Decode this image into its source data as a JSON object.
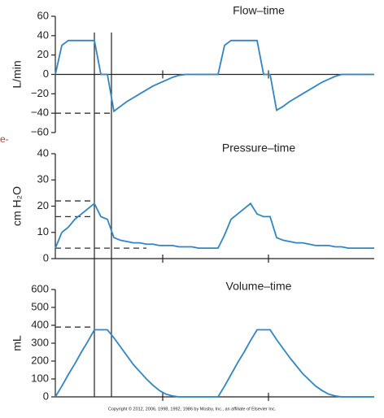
{
  "chart_data": [
    {
      "type": "line",
      "title": "Flow–time",
      "y_label": "L/min",
      "color": "#2f86c6",
      "categories": [
        null,
        null,
        null,
        null,
        null,
        null,
        null,
        null,
        null,
        null,
        null,
        null,
        null,
        null,
        null,
        null,
        null,
        null,
        null,
        null,
        null,
        null,
        null,
        null,
        null,
        null,
        null,
        null,
        null,
        null,
        null,
        null,
        null,
        null,
        null,
        null,
        null,
        null,
        null,
        null,
        null,
        null,
        null,
        null,
        null,
        null,
        null,
        null,
        null,
        null
      ],
      "values": [
        0,
        30,
        35,
        35,
        35,
        35,
        35,
        0,
        0,
        -38,
        -33,
        -28,
        -24,
        -20,
        -16,
        -12,
        -9,
        -6,
        -3,
        -1,
        0,
        0,
        0,
        0,
        0,
        0,
        30,
        35,
        35,
        35,
        35,
        35,
        0,
        0,
        -37,
        -33,
        -28,
        -24,
        -20,
        -16,
        -12,
        -8,
        -5,
        -2,
        0,
        0,
        0,
        0,
        0,
        0
      ],
      "ylim": [
        -60,
        60
      ],
      "yticks": [
        {
          "value": -60,
          "label": "−60"
        },
        {
          "value": -40,
          "label": "−40"
        },
        {
          "value": -20,
          "label": "−20"
        },
        0,
        20,
        40,
        60
      ],
      "reference_lines": [
        -40
      ]
    },
    {
      "type": "line",
      "title": "Pressure–time",
      "y_label": "cm H₂O",
      "color": "#2f86c6",
      "categories": [
        null,
        null,
        null,
        null,
        null,
        null,
        null,
        null,
        null,
        null,
        null,
        null,
        null,
        null,
        null,
        null,
        null,
        null,
        null,
        null,
        null,
        null,
        null,
        null,
        null,
        null,
        null,
        null,
        null,
        null,
        null,
        null,
        null,
        null,
        null,
        null,
        null,
        null,
        null,
        null,
        null,
        null,
        null,
        null,
        null,
        null,
        null,
        null,
        null,
        null
      ],
      "values": [
        4,
        10,
        12,
        15,
        17,
        19,
        21,
        16,
        15,
        8,
        7,
        6.5,
        6,
        6,
        5.5,
        5.5,
        5,
        5,
        5,
        4.5,
        4.5,
        4.5,
        4,
        4,
        4,
        4,
        9,
        15,
        17,
        19,
        21,
        17,
        16,
        16,
        8,
        7,
        6.5,
        6,
        6,
        5.5,
        5,
        5,
        5,
        4.5,
        4.5,
        4,
        4,
        4,
        4,
        4
      ],
      "ylim": [
        0,
        40
      ],
      "yticks": [
        0,
        10,
        20,
        30,
        40
      ],
      "reference_lines": [
        22,
        16,
        4
      ]
    },
    {
      "type": "line",
      "title": "Volume–time",
      "y_label": "mL",
      "color": "#2f86c6",
      "categories": [
        null,
        null,
        null,
        null,
        null,
        null,
        null,
        null,
        null,
        null,
        null,
        null,
        null,
        null,
        null,
        null,
        null,
        null,
        null,
        null,
        null,
        null,
        null,
        null,
        null,
        null,
        null,
        null,
        null,
        null,
        null,
        null,
        null,
        null,
        null,
        null,
        null,
        null,
        null,
        null,
        null,
        null,
        null,
        null,
        null,
        null,
        null,
        null,
        null,
        null
      ],
      "values": [
        0,
        60,
        125,
        185,
        250,
        310,
        375,
        375,
        375,
        330,
        280,
        230,
        180,
        140,
        100,
        65,
        35,
        15,
        5,
        0,
        0,
        0,
        0,
        0,
        0,
        0,
        60,
        125,
        190,
        250,
        315,
        375,
        375,
        375,
        320,
        270,
        220,
        175,
        130,
        95,
        60,
        35,
        15,
        5,
        0,
        0,
        0,
        0,
        0,
        0
      ],
      "ylim": [
        0,
        600
      ],
      "yticks": [
        0,
        100,
        200,
        300,
        400,
        500,
        600
      ],
      "reference_lines": [
        390
      ]
    }
  ],
  "side_note": "e-",
  "copyright": "Copyright © 2012, 2006, 1998, 1992, 1986 by Mosby, Inc., an affiliate of Elsevier Inc."
}
